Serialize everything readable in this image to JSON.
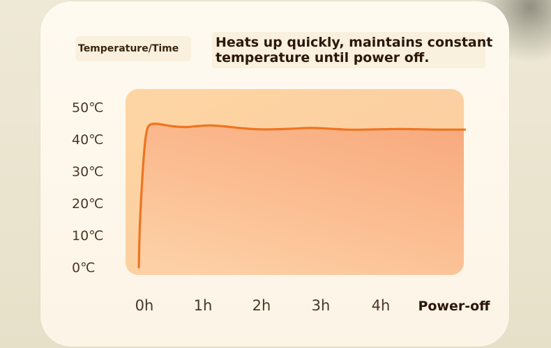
{
  "header": {
    "tag": "Temperature/Time",
    "headline_line1": "Heats up quickly, maintains constant",
    "headline_line2": "temperature until power off."
  },
  "chart_data": {
    "type": "area",
    "title": "",
    "xlabel": "",
    "ylabel": "",
    "x_ticks": [
      "0h",
      "1h",
      "2h",
      "3h",
      "4h",
      "Power-off"
    ],
    "y_ticks": [
      "50℃",
      "40℃",
      "30℃",
      "20℃",
      "10℃",
      "0℃"
    ],
    "y_tick_values": [
      50,
      40,
      30,
      20,
      10,
      0
    ],
    "ylim": [
      0,
      50
    ],
    "xlim": [
      0,
      5.5
    ],
    "grid": false,
    "legend": "none",
    "series": [
      {
        "x": [
          0,
          0.02,
          0.06,
          0.1,
          0.14,
          0.2,
          0.3,
          0.45,
          0.6,
          0.8,
          1.0,
          1.2,
          1.45,
          1.7,
          2.0,
          2.3,
          2.6,
          2.9,
          3.2,
          3.5,
          3.8,
          4.1,
          4.4,
          4.7,
          5.0,
          5.3,
          5.5
        ],
        "y": [
          0,
          14,
          28,
          38,
          43,
          44.6,
          44.8,
          44.4,
          44.0,
          43.8,
          44.1,
          44.3,
          44.0,
          43.5,
          43.1,
          43.1,
          43.3,
          43.5,
          43.3,
          43.0,
          43.0,
          43.1,
          43.2,
          43.1,
          43.0,
          43.0,
          43.0
        ]
      }
    ],
    "colors": {
      "line": "#ee7420",
      "area_top": "#f8b78a",
      "area_bottom": "#fcd3ad",
      "panel": "#fdd6a7"
    }
  }
}
